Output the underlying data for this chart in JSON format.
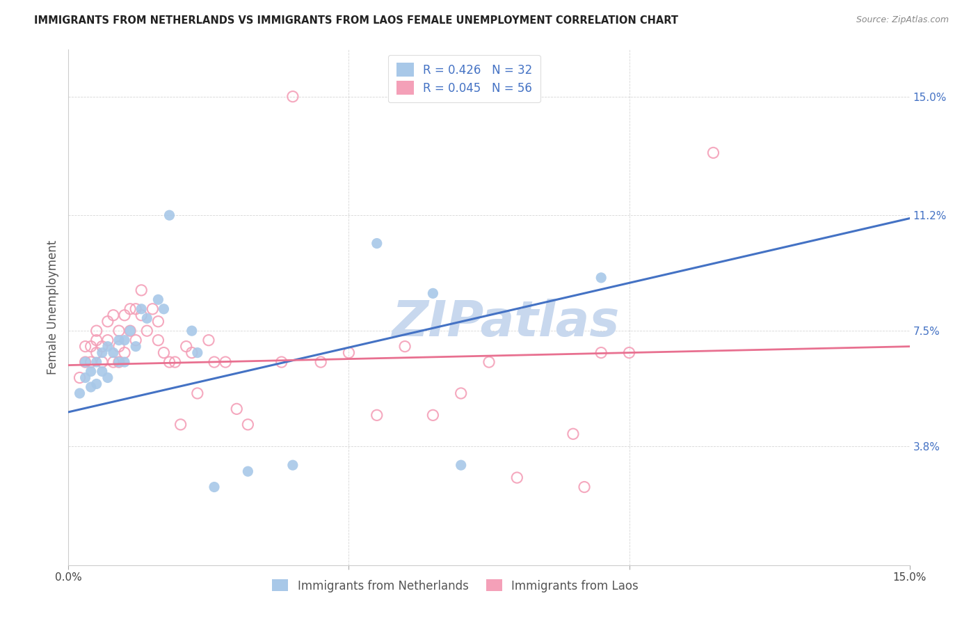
{
  "title": "IMMIGRANTS FROM NETHERLANDS VS IMMIGRANTS FROM LAOS FEMALE UNEMPLOYMENT CORRELATION CHART",
  "source": "Source: ZipAtlas.com",
  "ylabel": "Female Unemployment",
  "ytick_vals": [
    0.038,
    0.075,
    0.112,
    0.15
  ],
  "ytick_labels": [
    "3.8%",
    "7.5%",
    "11.2%",
    "15.0%"
  ],
  "xlim": [
    0.0,
    0.15
  ],
  "ylim": [
    0.0,
    0.165
  ],
  "color_netherlands_fill": "#a8c8e8",
  "color_netherlands_line": "#4472c4",
  "color_laos_edge": "#f4a0b8",
  "color_laos_line": "#e87090",
  "watermark_color": "#c8d8ee",
  "nl_line_x0": 0.0,
  "nl_line_y0": 0.049,
  "nl_line_x1": 0.15,
  "nl_line_y1": 0.111,
  "laos_line_x0": 0.0,
  "laos_line_y0": 0.064,
  "laos_line_x1": 0.15,
  "laos_line_y1": 0.07,
  "nl_x": [
    0.002,
    0.003,
    0.003,
    0.004,
    0.004,
    0.005,
    0.005,
    0.006,
    0.006,
    0.007,
    0.007,
    0.008,
    0.009,
    0.009,
    0.01,
    0.01,
    0.011,
    0.012,
    0.013,
    0.014,
    0.016,
    0.017,
    0.018,
    0.022,
    0.023,
    0.026,
    0.032,
    0.04,
    0.055,
    0.065,
    0.07,
    0.095
  ],
  "nl_y": [
    0.055,
    0.06,
    0.065,
    0.057,
    0.062,
    0.058,
    0.065,
    0.062,
    0.068,
    0.06,
    0.07,
    0.068,
    0.065,
    0.072,
    0.065,
    0.072,
    0.075,
    0.07,
    0.082,
    0.079,
    0.085,
    0.082,
    0.112,
    0.075,
    0.068,
    0.025,
    0.03,
    0.032,
    0.103,
    0.087,
    0.032,
    0.092
  ],
  "laos_x": [
    0.002,
    0.003,
    0.003,
    0.004,
    0.004,
    0.005,
    0.005,
    0.005,
    0.006,
    0.006,
    0.007,
    0.007,
    0.008,
    0.008,
    0.009,
    0.009,
    0.009,
    0.01,
    0.01,
    0.011,
    0.011,
    0.012,
    0.012,
    0.013,
    0.013,
    0.014,
    0.015,
    0.016,
    0.016,
    0.017,
    0.018,
    0.019,
    0.02,
    0.021,
    0.022,
    0.023,
    0.025,
    0.026,
    0.028,
    0.03,
    0.032,
    0.038,
    0.04,
    0.045,
    0.05,
    0.055,
    0.06,
    0.065,
    0.07,
    0.075,
    0.08,
    0.09,
    0.092,
    0.095,
    0.1,
    0.115
  ],
  "laos_y": [
    0.06,
    0.065,
    0.07,
    0.065,
    0.07,
    0.068,
    0.072,
    0.075,
    0.065,
    0.07,
    0.072,
    0.078,
    0.065,
    0.08,
    0.07,
    0.075,
    0.065,
    0.08,
    0.068,
    0.082,
    0.075,
    0.082,
    0.072,
    0.08,
    0.088,
    0.075,
    0.082,
    0.078,
    0.072,
    0.068,
    0.065,
    0.065,
    0.045,
    0.07,
    0.068,
    0.055,
    0.072,
    0.065,
    0.065,
    0.05,
    0.045,
    0.065,
    0.15,
    0.065,
    0.068,
    0.048,
    0.07,
    0.048,
    0.055,
    0.065,
    0.028,
    0.042,
    0.025,
    0.068,
    0.068,
    0.132
  ]
}
